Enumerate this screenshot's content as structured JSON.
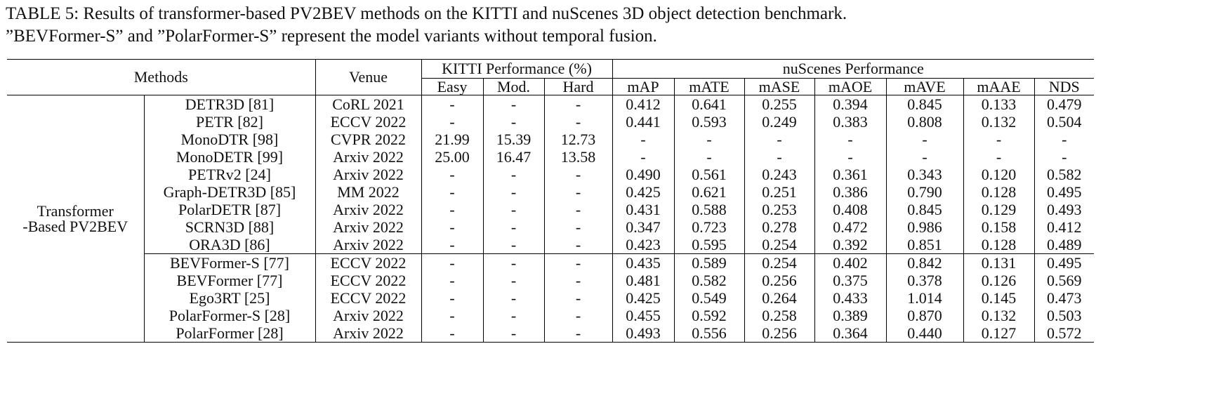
{
  "caption": [
    "TABLE 5: Results of transformer-based PV2BEV methods on the KITTI and nuScenes 3D object detection benchmark.",
    "”BEVFormer-S” and ”PolarFormer-S” represent the model variants without temporal fusion."
  ],
  "table": {
    "header": {
      "methods": "Methods",
      "venue": "Venue",
      "kitti": "KITTI Performance (%)",
      "nuscenes": "nuScenes Performance",
      "columns": [
        "Easy",
        "Mod.",
        "Hard",
        "mAP",
        "mATE",
        "mASE",
        "mAOE",
        "mAVE",
        "mAAE",
        "NDS"
      ]
    },
    "group": [
      "Transformer",
      "-Based PV2BEV"
    ],
    "rows": [
      {
        "method": "DETR3D [81]",
        "venue": "CoRL 2021",
        "values": [
          "-",
          "-",
          "-",
          "0.412",
          "0.641",
          "0.255",
          "0.394",
          "0.845",
          "0.133",
          "0.479"
        ]
      },
      {
        "method": "PETR [82]",
        "venue": "ECCV 2022",
        "values": [
          "-",
          "-",
          "-",
          "0.441",
          "0.593",
          "0.249",
          "0.383",
          "0.808",
          "0.132",
          "0.504"
        ]
      },
      {
        "method": "MonoDTR [98]",
        "venue": "CVPR 2022",
        "values": [
          "21.99",
          "15.39",
          "12.73",
          "-",
          "-",
          "-",
          "-",
          "-",
          "-",
          "-"
        ]
      },
      {
        "method": "MonoDETR [99]",
        "venue": "Arxiv 2022",
        "values": [
          "25.00",
          "16.47",
          "13.58",
          "-",
          "-",
          "-",
          "-",
          "-",
          "-",
          "-"
        ]
      },
      {
        "method": "PETRv2 [24]",
        "venue": "Arxiv 2022",
        "values": [
          "-",
          "-",
          "-",
          "0.490",
          "0.561",
          "0.243",
          "0.361",
          "0.343",
          "0.120",
          "0.582"
        ]
      },
      {
        "method": "Graph-DETR3D [85]",
        "venue": "MM 2022",
        "values": [
          "-",
          "-",
          "-",
          "0.425",
          "0.621",
          "0.251",
          "0.386",
          "0.790",
          "0.128",
          "0.495"
        ]
      },
      {
        "method": "PolarDETR [87]",
        "venue": "Arxiv 2022",
        "values": [
          "-",
          "-",
          "-",
          "0.431",
          "0.588",
          "0.253",
          "0.408",
          "0.845",
          "0.129",
          "0.493"
        ]
      },
      {
        "method": "SCRN3D [88]",
        "venue": "Arxiv 2022",
        "values": [
          "-",
          "-",
          "-",
          "0.347",
          "0.723",
          "0.278",
          "0.472",
          "0.986",
          "0.158",
          "0.412"
        ]
      },
      {
        "method": "ORA3D [86]",
        "venue": "Arxiv 2022",
        "values": [
          "-",
          "-",
          "-",
          "0.423",
          "0.595",
          "0.254",
          "0.392",
          "0.851",
          "0.128",
          "0.489"
        ]
      },
      {
        "method": "BEVFormer-S [77]",
        "venue": "ECCV 2022",
        "values": [
          "-",
          "-",
          "-",
          "0.435",
          "0.589",
          "0.254",
          "0.402",
          "0.842",
          "0.131",
          "0.495"
        ]
      },
      {
        "method": "BEVFormer [77]",
        "venue": "ECCV 2022",
        "values": [
          "-",
          "-",
          "-",
          "0.481",
          "0.582",
          "0.256",
          "0.375",
          "0.378",
          "0.126",
          "0.569"
        ]
      },
      {
        "method": "Ego3RT [25]",
        "venue": "ECCV 2022",
        "values": [
          "-",
          "-",
          "-",
          "0.425",
          "0.549",
          "0.264",
          "0.433",
          "1.014",
          "0.145",
          "0.473"
        ]
      },
      {
        "method": "PolarFormer-S [28]",
        "venue": "Arxiv 2022",
        "values": [
          "-",
          "-",
          "-",
          "0.455",
          "0.592",
          "0.258",
          "0.389",
          "0.870",
          "0.132",
          "0.503"
        ]
      },
      {
        "method": "PolarFormer [28]",
        "venue": "Arxiv 2022",
        "values": [
          "-",
          "-",
          "-",
          "0.493",
          "0.556",
          "0.256",
          "0.364",
          "0.440",
          "0.127",
          "0.572"
        ]
      }
    ]
  }
}
